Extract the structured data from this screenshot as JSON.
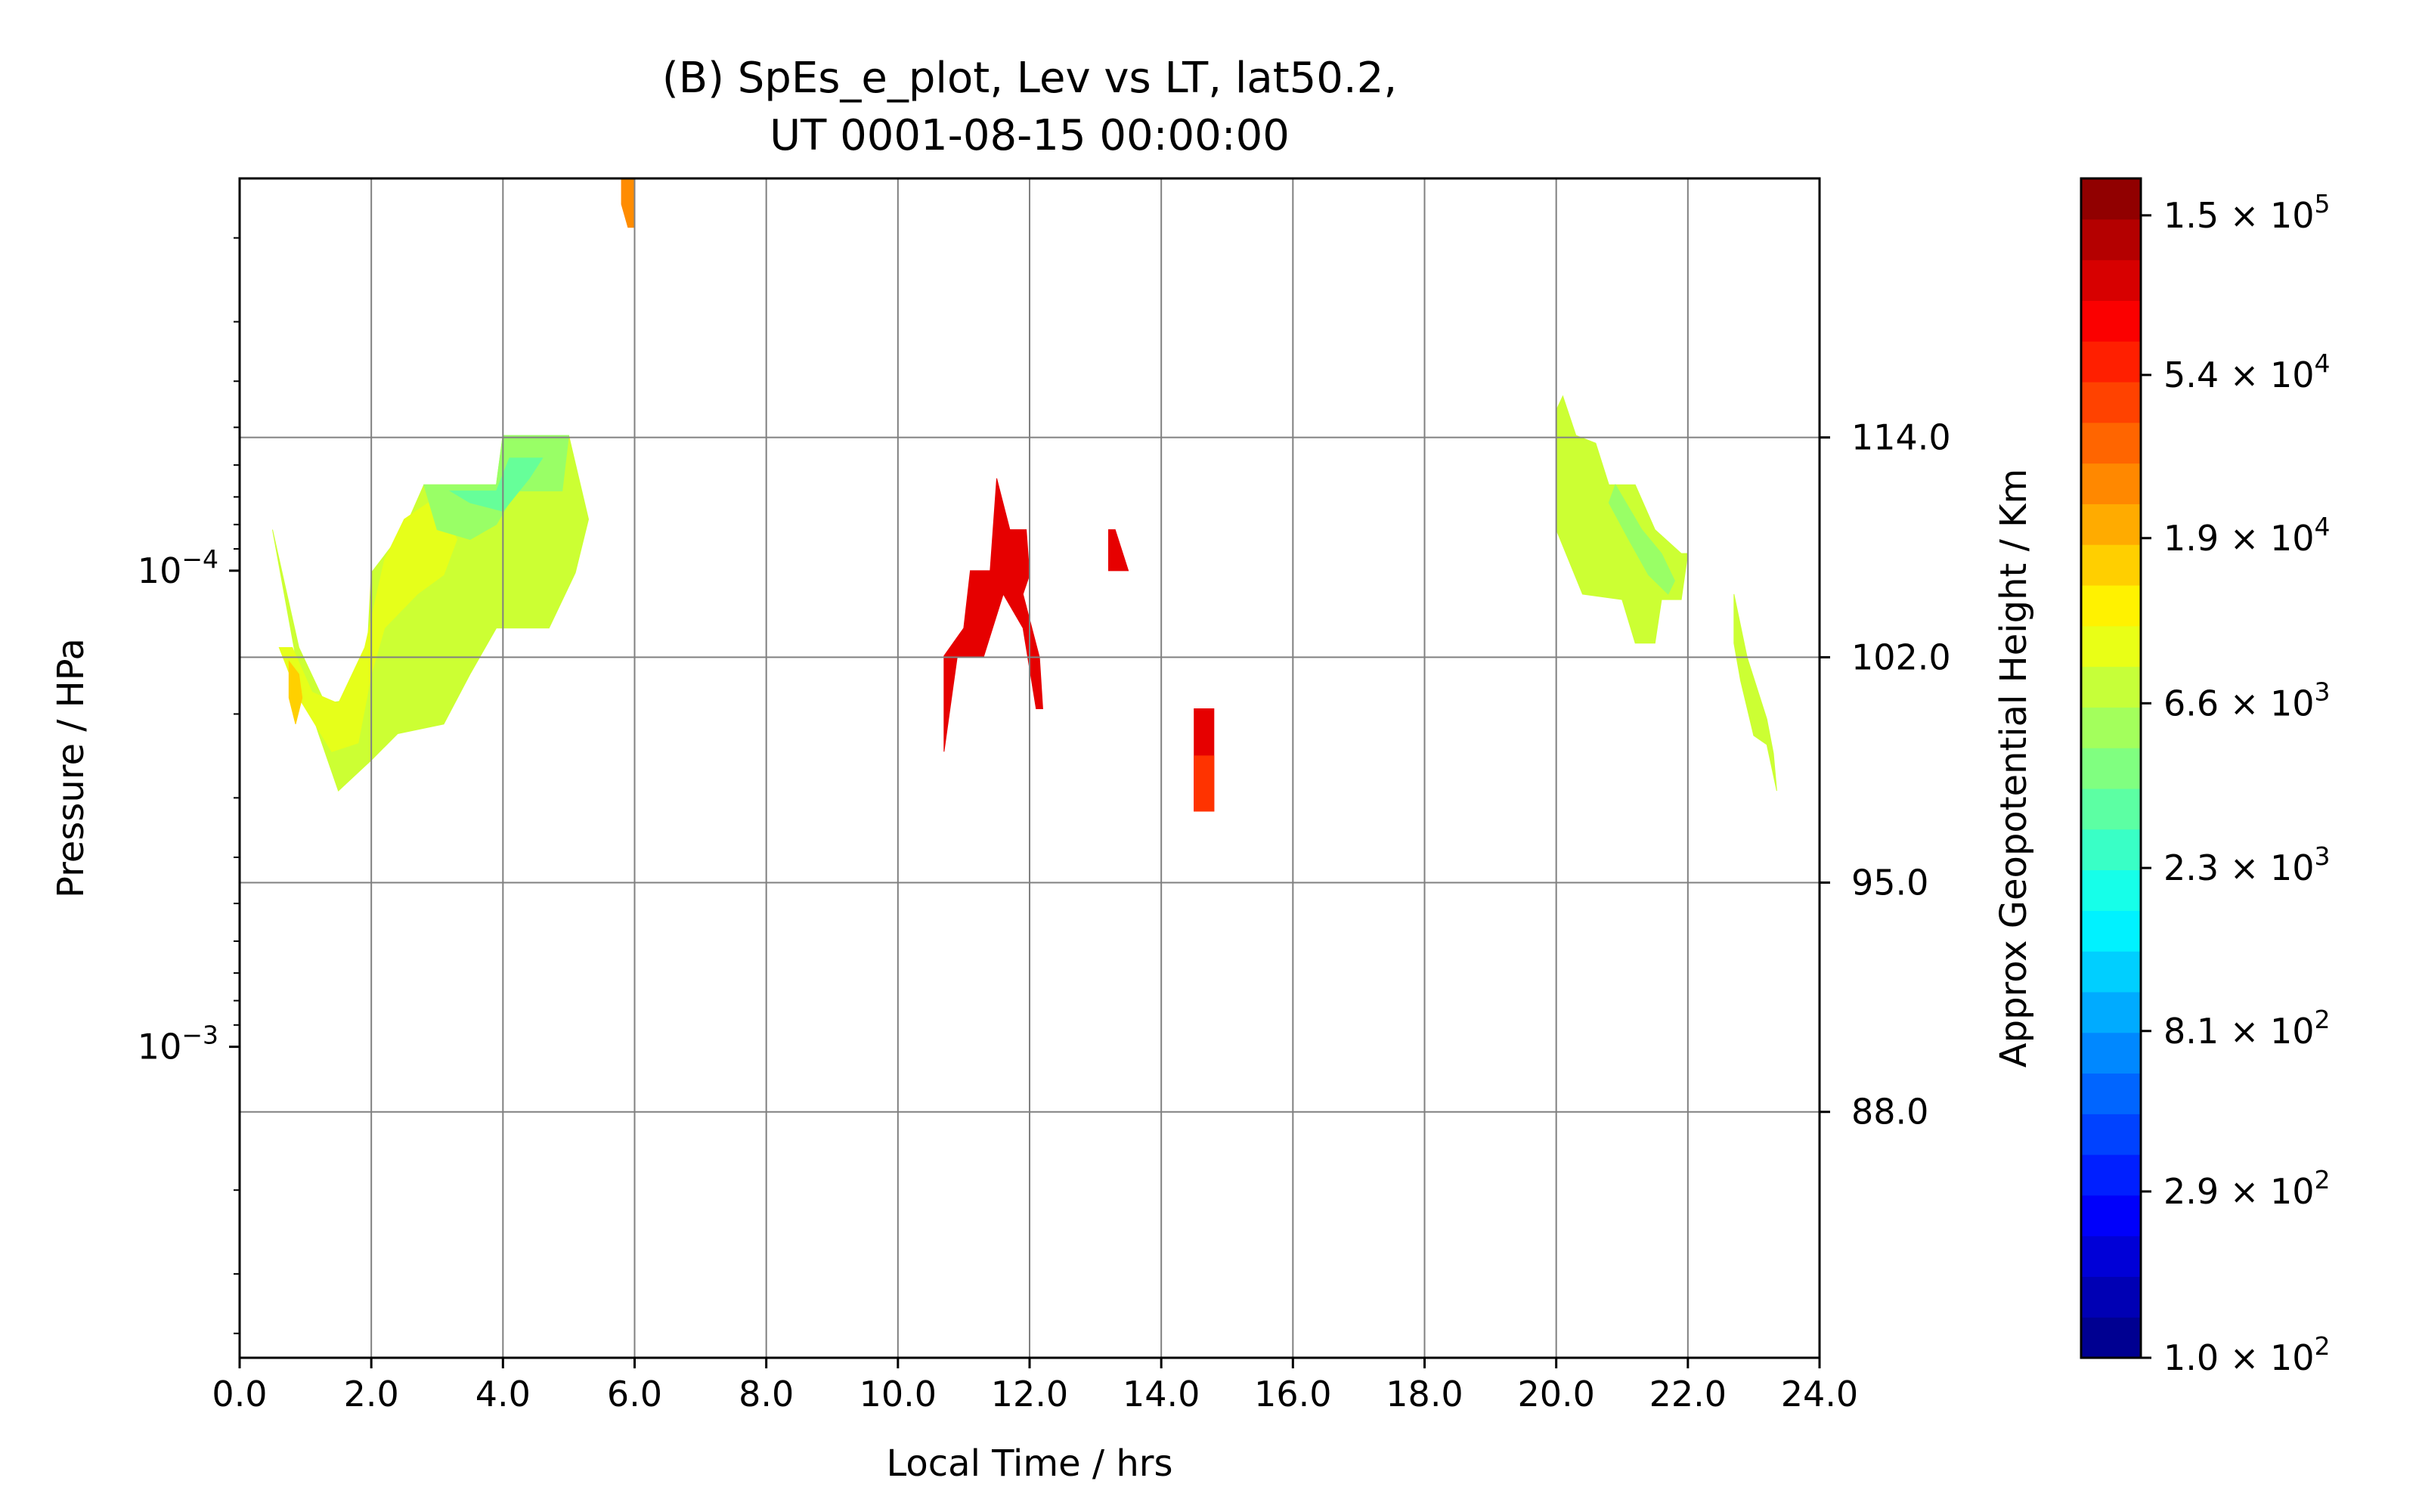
{
  "chart_data": {
    "type": "heatmap",
    "title_lines": [
      "(B) SpEs_e_plot, Lev vs LT, lat50.2,",
      "UT 0001-08-15 00:00:00"
    ],
    "xlabel": "Local Time / hrs",
    "ylabel": "Pressure / HPa",
    "y2label": "Approx Geopotential Height / Km",
    "xlim": [
      0,
      24
    ],
    "x_ticks": [
      "0.0",
      "2.0",
      "4.0",
      "6.0",
      "8.0",
      "10.0",
      "12.0",
      "14.0",
      "16.0",
      "18.0",
      "20.0",
      "22.0",
      "24.0"
    ],
    "y_scale": "log",
    "ylim": [
      0.0045,
      1.5e-05
    ],
    "y_ticks": [
      {
        "base": "10",
        "exp": "−4",
        "value": 0.0001
      },
      {
        "base": "10",
        "exp": "−3",
        "value": 0.001
      }
    ],
    "y2_ticks": [
      {
        "label": "114.0",
        "pressure": 5.25e-05
      },
      {
        "label": "102.0",
        "pressure": 0.000152
      },
      {
        "label": "95.0",
        "pressure": 0.000452
      },
      {
        "label": "88.0",
        "pressure": 0.00137
      }
    ],
    "grid": true,
    "colorbar": {
      "colormap": "jet",
      "min": 100,
      "max": 190000,
      "levels": 29,
      "tick_labels": [
        {
          "mant": "1.5",
          "exp": "5"
        },
        {
          "mant": "5.4",
          "exp": "4"
        },
        {
          "mant": "1.9",
          "exp": "4"
        },
        {
          "mant": "6.6",
          "exp": "3"
        },
        {
          "mant": "2.3",
          "exp": "3"
        },
        {
          "mant": "8.1",
          "exp": "2"
        },
        {
          "mant": "2.9",
          "exp": "2"
        },
        {
          "mant": "1.0",
          "exp": "2"
        }
      ]
    },
    "regions": [
      {
        "color": "#ff8c00",
        "level": 30000,
        "poly": [
          [
            5.8,
            1.5e-05
          ],
          [
            6.0,
            1.5e-05
          ],
          [
            6.0,
            1.9e-05
          ],
          [
            5.9,
            1.9e-05
          ],
          [
            5.8,
            1.7e-05
          ]
        ]
      },
      {
        "color": "#ccff33",
        "level": 9000,
        "poly": [
          [
            0.5,
            8.2e-05
          ],
          [
            0.9,
            0.000165
          ],
          [
            1.2,
            0.00022
          ],
          [
            1.5,
            0.00029
          ],
          [
            2.0,
            0.00025
          ],
          [
            2.4,
            0.00022
          ],
          [
            3.1,
            0.00021
          ],
          [
            3.5,
            0.000165
          ],
          [
            3.9,
            0.000132
          ],
          [
            4.7,
            0.000132
          ],
          [
            5.1,
            0.000101
          ],
          [
            5.3,
            7.8e-05
          ],
          [
            5.0,
            5.2e-05
          ],
          [
            4.0,
            5.2e-05
          ],
          [
            3.9,
            6.6e-05
          ],
          [
            2.8,
            6.6e-05
          ],
          [
            2.5,
            8.2e-05
          ],
          [
            2.0,
            0.000101
          ],
          [
            1.9,
            0.000185
          ],
          [
            1.3,
            0.00019
          ],
          [
            0.9,
            0.000145
          ]
        ]
      },
      {
        "color": "#e6ff1a",
        "level": 14000,
        "poly": [
          [
            0.6,
            0.000145
          ],
          [
            0.9,
            0.000185
          ],
          [
            1.4,
            0.00024
          ],
          [
            1.8,
            0.00023
          ],
          [
            2.0,
            0.000165
          ],
          [
            2.2,
            0.000132
          ],
          [
            2.7,
            0.000112
          ],
          [
            3.1,
            0.000102
          ],
          [
            3.3,
            8.6e-05
          ],
          [
            3.0,
            7e-05
          ],
          [
            2.5,
            7.8e-05
          ],
          [
            2.2,
            9.5e-05
          ],
          [
            1.9,
            0.000145
          ],
          [
            1.5,
            0.00019
          ],
          [
            1.1,
            0.00018
          ],
          [
            0.8,
            0.000145
          ]
        ]
      },
      {
        "color": "#ffd000",
        "level": 19000,
        "poly": [
          [
            0.75,
            0.000155
          ],
          [
            0.9,
            0.000165
          ],
          [
            0.95,
            0.000185
          ],
          [
            0.85,
            0.00021
          ],
          [
            0.75,
            0.000185
          ]
        ]
      },
      {
        "color": "#99ff66",
        "level": 4500,
        "poly": [
          [
            2.8,
            6.6e-05
          ],
          [
            3.9,
            6.6e-05
          ],
          [
            4.0,
            5.2e-05
          ],
          [
            5.0,
            5.2e-05
          ],
          [
            4.9,
            6.8e-05
          ],
          [
            4.2,
            6.8e-05
          ],
          [
            3.9,
            8e-05
          ],
          [
            3.5,
            8.6e-05
          ],
          [
            3.0,
            8.2e-05
          ]
        ]
      },
      {
        "color": "#66ff99",
        "level": 3000,
        "poly": [
          [
            3.2,
            6.8e-05
          ],
          [
            3.9,
            6.8e-05
          ],
          [
            4.1,
            5.8e-05
          ],
          [
            4.6,
            5.8e-05
          ],
          [
            4.4,
            6.4e-05
          ],
          [
            4.0,
            7.5e-05
          ],
          [
            3.5,
            7.2e-05
          ]
        ]
      },
      {
        "color": "#ccff33",
        "level": 9000,
        "poly": [
          [
            20.0,
            4.6e-05
          ],
          [
            20.1,
            4.3e-05
          ],
          [
            20.3,
            5.2e-05
          ],
          [
            20.6,
            5.4e-05
          ],
          [
            20.8,
            6.6e-05
          ],
          [
            21.2,
            6.6e-05
          ],
          [
            21.5,
            8.2e-05
          ],
          [
            21.9,
            9.2e-05
          ],
          [
            22.0,
            9.2e-05
          ],
          [
            21.9,
            0.000115
          ],
          [
            21.6,
            0.000115
          ],
          [
            21.5,
            0.000142
          ],
          [
            21.2,
            0.000142
          ],
          [
            21.0,
            0.000115
          ],
          [
            20.4,
            0.000112
          ],
          [
            20.0,
            8.2e-05
          ]
        ]
      },
      {
        "color": "#99ff66",
        "level": 4500,
        "poly": [
          [
            20.9,
            6.6e-05
          ],
          [
            21.3,
            8.2e-05
          ],
          [
            21.6,
            9.2e-05
          ],
          [
            21.8,
            0.000105
          ],
          [
            21.7,
            0.000112
          ],
          [
            21.4,
            0.000102
          ],
          [
            21.1,
            8.6e-05
          ],
          [
            20.8,
            7.2e-05
          ]
        ]
      },
      {
        "color": "#ccff33",
        "level": 9000,
        "poly": [
          [
            22.7,
            0.000112
          ],
          [
            22.9,
            0.000152
          ],
          [
            23.2,
            0.000205
          ],
          [
            23.3,
            0.000242
          ],
          [
            23.35,
            0.00029
          ],
          [
            23.2,
            0.000232
          ],
          [
            23.0,
            0.000222
          ],
          [
            22.8,
            0.00017
          ],
          [
            22.7,
            0.000142
          ]
        ]
      },
      {
        "color": "#e60000",
        "level": 110000,
        "poly": [
          [
            10.7,
            0.000151
          ],
          [
            11.0,
            0.000132
          ],
          [
            11.1,
            0.0001
          ],
          [
            11.4,
            0.0001
          ],
          [
            11.5,
            6.4e-05
          ],
          [
            11.7,
            8.2e-05
          ],
          [
            11.95,
            8.2e-05
          ],
          [
            12.0,
            0.000102
          ],
          [
            11.9,
            0.000112
          ],
          [
            12.15,
            0.000152
          ],
          [
            12.2,
            0.000195
          ],
          [
            12.1,
            0.000195
          ],
          [
            11.9,
            0.000132
          ],
          [
            11.6,
            0.000112
          ],
          [
            11.3,
            0.000152
          ],
          [
            10.9,
            0.000152
          ],
          [
            10.7,
            0.00024
          ]
        ]
      },
      {
        "color": "#e60000",
        "level": 110000,
        "poly": [
          [
            13.2,
            8.2e-05
          ],
          [
            13.3,
            8.2e-05
          ],
          [
            13.5,
            0.0001
          ],
          [
            13.2,
            0.0001
          ]
        ]
      },
      {
        "color": "#e60000",
        "level": 110000,
        "poly": [
          [
            14.5,
            0.000195
          ],
          [
            14.8,
            0.000195
          ],
          [
            14.8,
            0.00032
          ],
          [
            14.5,
            0.00032
          ]
        ]
      },
      {
        "color": "#ff3300",
        "level": 80000,
        "poly": [
          [
            14.5,
            0.000245
          ],
          [
            14.8,
            0.000245
          ],
          [
            14.8,
            0.00032
          ],
          [
            14.5,
            0.00032
          ]
        ]
      }
    ]
  }
}
